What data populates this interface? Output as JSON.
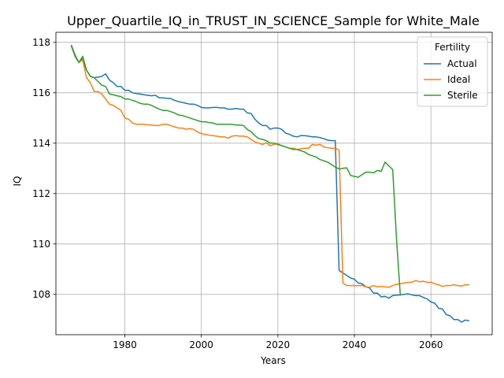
{
  "chart_data": {
    "type": "line",
    "title": "Upper_Quartile_IQ_in_TRUST_IN_SCIENCE_Sample for White_Male",
    "xlabel": "Years",
    "ylabel": "IQ",
    "xlim": [
      1962,
      2076
    ],
    "ylim": [
      106.4,
      118.4
    ],
    "xticks": [
      1980,
      2000,
      2020,
      2040,
      2060
    ],
    "yticks": [
      108,
      110,
      112,
      114,
      116,
      118
    ],
    "grid": true,
    "legend": {
      "title": "Fertility",
      "placement": "upper-right"
    },
    "series": [
      {
        "name": "Actual",
        "color": "#1f77b4",
        "points": [
          [
            1966,
            117.9
          ],
          [
            1967,
            117.5
          ],
          [
            1968,
            117.2
          ],
          [
            1969,
            117.35
          ],
          [
            1970,
            116.9
          ],
          [
            1971,
            116.65
          ],
          [
            1972,
            116.6
          ],
          [
            1973,
            116.62
          ],
          [
            1974,
            116.65
          ],
          [
            1975,
            116.75
          ],
          [
            1976,
            116.5
          ],
          [
            1977,
            116.4
          ],
          [
            1978,
            116.25
          ],
          [
            1979,
            116.25
          ],
          [
            1980,
            116.1
          ],
          [
            1981,
            116.1
          ],
          [
            1982,
            116.0
          ],
          [
            1983,
            115.97
          ],
          [
            1984,
            115.95
          ],
          [
            1985,
            115.92
          ],
          [
            1986,
            115.9
          ],
          [
            1987,
            115.88
          ],
          [
            1988,
            115.9
          ],
          [
            1989,
            115.8
          ],
          [
            1990,
            115.8
          ],
          [
            1991,
            115.78
          ],
          [
            1992,
            115.77
          ],
          [
            1993,
            115.7
          ],
          [
            1994,
            115.65
          ],
          [
            1995,
            115.62
          ],
          [
            1996,
            115.58
          ],
          [
            1997,
            115.55
          ],
          [
            1998,
            115.55
          ],
          [
            1999,
            115.5
          ],
          [
            2000,
            115.42
          ],
          [
            2001,
            115.4
          ],
          [
            2002,
            115.4
          ],
          [
            2003,
            115.42
          ],
          [
            2004,
            115.42
          ],
          [
            2005,
            115.4
          ],
          [
            2006,
            115.4
          ],
          [
            2007,
            115.35
          ],
          [
            2008,
            115.35
          ],
          [
            2009,
            115.38
          ],
          [
            2010,
            115.35
          ],
          [
            2011,
            115.35
          ],
          [
            2012,
            115.2
          ],
          [
            2013,
            115.18
          ],
          [
            2014,
            114.95
          ],
          [
            2015,
            114.8
          ],
          [
            2016,
            114.7
          ],
          [
            2017,
            114.7
          ],
          [
            2018,
            114.55
          ],
          [
            2019,
            114.6
          ],
          [
            2020,
            114.6
          ],
          [
            2021,
            114.55
          ],
          [
            2022,
            114.4
          ],
          [
            2023,
            114.35
          ],
          [
            2024,
            114.28
          ],
          [
            2025,
            114.25
          ],
          [
            2026,
            114.3
          ],
          [
            2027,
            114.3
          ],
          [
            2028,
            114.28
          ],
          [
            2029,
            114.25
          ],
          [
            2030,
            114.25
          ],
          [
            2031,
            114.22
          ],
          [
            2032,
            114.18
          ],
          [
            2033,
            114.12
          ],
          [
            2034,
            114.1
          ],
          [
            2035,
            114.1
          ],
          [
            2036,
            108.95
          ],
          [
            2037,
            108.85
          ],
          [
            2038,
            108.75
          ],
          [
            2039,
            108.65
          ],
          [
            2040,
            108.6
          ],
          [
            2041,
            108.45
          ],
          [
            2042,
            108.42
          ],
          [
            2043,
            108.3
          ],
          [
            2044,
            108.25
          ],
          [
            2045,
            108.05
          ],
          [
            2046,
            108.05
          ],
          [
            2047,
            107.9
          ],
          [
            2048,
            107.92
          ],
          [
            2049,
            107.85
          ],
          [
            2050,
            107.95
          ],
          [
            2051,
            107.97
          ],
          [
            2052,
            107.98
          ],
          [
            2053,
            108.0
          ],
          [
            2054,
            108.02
          ],
          [
            2055,
            107.98
          ],
          [
            2056,
            107.95
          ],
          [
            2057,
            107.95
          ],
          [
            2058,
            107.88
          ],
          [
            2059,
            107.82
          ],
          [
            2060,
            107.7
          ],
          [
            2061,
            107.65
          ],
          [
            2062,
            107.45
          ],
          [
            2063,
            107.42
          ],
          [
            2064,
            107.2
          ],
          [
            2065,
            107.15
          ],
          [
            2066,
            107.0
          ],
          [
            2067,
            107.0
          ],
          [
            2068,
            106.9
          ],
          [
            2069,
            106.98
          ],
          [
            2070,
            106.95
          ]
        ]
      },
      {
        "name": "Ideal",
        "color": "#ff7f0e",
        "points": [
          [
            1966,
            117.85
          ],
          [
            1967,
            117.45
          ],
          [
            1968,
            117.2
          ],
          [
            1969,
            117.3
          ],
          [
            1970,
            116.6
          ],
          [
            1971,
            116.4
          ],
          [
            1972,
            116.05
          ],
          [
            1973,
            116.05
          ],
          [
            1974,
            115.95
          ],
          [
            1975,
            115.75
          ],
          [
            1976,
            115.55
          ],
          [
            1977,
            115.5
          ],
          [
            1978,
            115.4
          ],
          [
            1979,
            115.3
          ],
          [
            1980,
            115.0
          ],
          [
            1981,
            114.95
          ],
          [
            1982,
            114.8
          ],
          [
            1983,
            114.75
          ],
          [
            1984,
            114.75
          ],
          [
            1985,
            114.75
          ],
          [
            1986,
            114.73
          ],
          [
            1987,
            114.72
          ],
          [
            1988,
            114.7
          ],
          [
            1989,
            114.7
          ],
          [
            1990,
            114.75
          ],
          [
            1991,
            114.75
          ],
          [
            1992,
            114.7
          ],
          [
            1993,
            114.65
          ],
          [
            1994,
            114.6
          ],
          [
            1995,
            114.6
          ],
          [
            1996,
            114.55
          ],
          [
            1997,
            114.58
          ],
          [
            1998,
            114.55
          ],
          [
            1999,
            114.45
          ],
          [
            2000,
            114.38
          ],
          [
            2001,
            114.35
          ],
          [
            2002,
            114.32
          ],
          [
            2003,
            114.3
          ],
          [
            2004,
            114.28
          ],
          [
            2005,
            114.25
          ],
          [
            2006,
            114.25
          ],
          [
            2007,
            114.2
          ],
          [
            2008,
            114.28
          ],
          [
            2009,
            114.3
          ],
          [
            2010,
            114.28
          ],
          [
            2011,
            114.28
          ],
          [
            2012,
            114.25
          ],
          [
            2013,
            114.15
          ],
          [
            2014,
            114.05
          ],
          [
            2015,
            114.0
          ],
          [
            2016,
            113.95
          ],
          [
            2017,
            114.02
          ],
          [
            2018,
            113.9
          ],
          [
            2019,
            113.95
          ],
          [
            2020,
            113.98
          ],
          [
            2021,
            113.9
          ],
          [
            2022,
            113.85
          ],
          [
            2023,
            113.8
          ],
          [
            2024,
            113.8
          ],
          [
            2025,
            113.75
          ],
          [
            2026,
            113.78
          ],
          [
            2027,
            113.8
          ],
          [
            2028,
            113.8
          ],
          [
            2029,
            113.95
          ],
          [
            2030,
            113.92
          ],
          [
            2031,
            113.95
          ],
          [
            2032,
            113.85
          ],
          [
            2033,
            113.82
          ],
          [
            2034,
            113.8
          ],
          [
            2035,
            113.8
          ],
          [
            2036,
            113.72
          ],
          [
            2037,
            108.45
          ],
          [
            2038,
            108.35
          ],
          [
            2039,
            108.35
          ],
          [
            2040,
            108.35
          ],
          [
            2041,
            108.35
          ],
          [
            2042,
            108.35
          ],
          [
            2043,
            108.3
          ],
          [
            2044,
            108.28
          ],
          [
            2045,
            108.35
          ],
          [
            2046,
            108.3
          ],
          [
            2047,
            108.32
          ],
          [
            2048,
            108.3
          ],
          [
            2049,
            108.28
          ],
          [
            2050,
            108.35
          ],
          [
            2051,
            108.4
          ],
          [
            2052,
            108.42
          ],
          [
            2053,
            108.45
          ],
          [
            2054,
            108.48
          ],
          [
            2055,
            108.48
          ],
          [
            2056,
            108.55
          ],
          [
            2057,
            108.5
          ],
          [
            2058,
            108.52
          ],
          [
            2059,
            108.48
          ],
          [
            2060,
            108.48
          ],
          [
            2061,
            108.42
          ],
          [
            2062,
            108.38
          ],
          [
            2063,
            108.32
          ],
          [
            2064,
            108.35
          ],
          [
            2065,
            108.35
          ],
          [
            2066,
            108.38
          ],
          [
            2067,
            108.35
          ],
          [
            2068,
            108.33
          ],
          [
            2069,
            108.38
          ],
          [
            2070,
            108.38
          ]
        ]
      },
      {
        "name": "Sterile",
        "color": "#2ca02c",
        "points": [
          [
            1966,
            117.9
          ],
          [
            1967,
            117.45
          ],
          [
            1968,
            117.2
          ],
          [
            1969,
            117.45
          ],
          [
            1970,
            116.9
          ],
          [
            1971,
            116.65
          ],
          [
            1972,
            116.6
          ],
          [
            1973,
            116.45
          ],
          [
            1974,
            116.3
          ],
          [
            1975,
            116.25
          ],
          [
            1976,
            115.95
          ],
          [
            1977,
            115.92
          ],
          [
            1978,
            115.88
          ],
          [
            1979,
            115.85
          ],
          [
            1980,
            115.75
          ],
          [
            1981,
            115.75
          ],
          [
            1982,
            115.7
          ],
          [
            1983,
            115.65
          ],
          [
            1984,
            115.58
          ],
          [
            1985,
            115.55
          ],
          [
            1986,
            115.55
          ],
          [
            1987,
            115.5
          ],
          [
            1988,
            115.42
          ],
          [
            1989,
            115.35
          ],
          [
            1990,
            115.3
          ],
          [
            1991,
            115.3
          ],
          [
            1992,
            115.25
          ],
          [
            1993,
            115.2
          ],
          [
            1994,
            115.12
          ],
          [
            1995,
            115.1
          ],
          [
            1996,
            115.05
          ],
          [
            1997,
            115.0
          ],
          [
            1998,
            114.95
          ],
          [
            1999,
            114.9
          ],
          [
            2000,
            114.85
          ],
          [
            2001,
            114.85
          ],
          [
            2002,
            114.82
          ],
          [
            2003,
            114.8
          ],
          [
            2004,
            114.75
          ],
          [
            2005,
            114.75
          ],
          [
            2006,
            114.75
          ],
          [
            2007,
            114.75
          ],
          [
            2008,
            114.75
          ],
          [
            2009,
            114.72
          ],
          [
            2010,
            114.72
          ],
          [
            2011,
            114.7
          ],
          [
            2012,
            114.55
          ],
          [
            2013,
            114.45
          ],
          [
            2014,
            114.3
          ],
          [
            2015,
            114.18
          ],
          [
            2016,
            114.15
          ],
          [
            2017,
            114.1
          ],
          [
            2018,
            114.0
          ],
          [
            2019,
            114.0
          ],
          [
            2020,
            113.95
          ],
          [
            2021,
            113.9
          ],
          [
            2022,
            113.85
          ],
          [
            2023,
            113.8
          ],
          [
            2024,
            113.75
          ],
          [
            2025,
            113.75
          ],
          [
            2026,
            113.7
          ],
          [
            2027,
            113.65
          ],
          [
            2028,
            113.55
          ],
          [
            2029,
            113.5
          ],
          [
            2030,
            113.45
          ],
          [
            2031,
            113.35
          ],
          [
            2032,
            113.3
          ],
          [
            2033,
            113.25
          ],
          [
            2034,
            113.15
          ],
          [
            2035,
            113.05
          ],
          [
            2036,
            112.98
          ],
          [
            2037,
            113.0
          ],
          [
            2038,
            113.02
          ],
          [
            2039,
            112.72
          ],
          [
            2040,
            112.68
          ],
          [
            2041,
            112.65
          ],
          [
            2042,
            112.75
          ],
          [
            2043,
            112.85
          ],
          [
            2044,
            112.85
          ],
          [
            2045,
            112.82
          ],
          [
            2046,
            112.92
          ],
          [
            2047,
            112.88
          ],
          [
            2048,
            113.25
          ],
          [
            2049,
            113.1
          ],
          [
            2050,
            112.95
          ],
          [
            2051,
            110.2
          ],
          [
            2052,
            107.95
          ]
        ]
      }
    ]
  }
}
